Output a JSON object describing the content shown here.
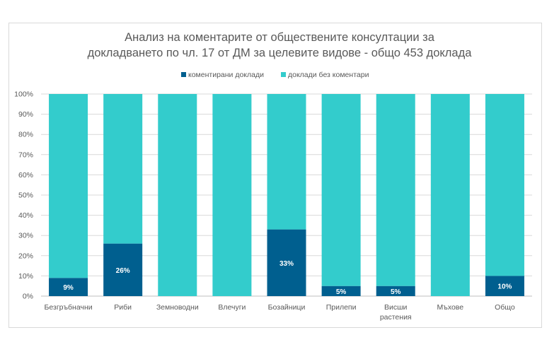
{
  "chart_data": {
    "type": "bar",
    "stacked": true,
    "title_lines": [
      "Анализ на коментарите от обществените консултации за",
      "докладването по чл. 17 от ДМ за целевите видове - общо 453 доклада"
    ],
    "categories": [
      [
        "Безгръбначни"
      ],
      [
        "Риби"
      ],
      [
        "Земноводни"
      ],
      [
        "Влечуги"
      ],
      [
        "Бозайници"
      ],
      [
        "Прилепи"
      ],
      [
        "Висши",
        "растения"
      ],
      [
        "Мъхове"
      ],
      [
        "Общо"
      ]
    ],
    "series": [
      {
        "name": "коментирани доклади",
        "color": "#005f8f",
        "values": [
          9,
          26,
          0,
          0,
          33,
          5,
          5,
          0,
          10
        ],
        "labels": [
          "9%",
          "26%",
          "",
          "",
          "33%",
          "5%",
          "5%",
          "",
          "10%"
        ]
      },
      {
        "name": "доклади без коментари",
        "color": "#33cccc",
        "values": [
          91,
          74,
          100,
          100,
          67,
          95,
          95,
          100,
          90
        ]
      }
    ],
    "yticks": [
      "0%",
      "10%",
      "20%",
      "30%",
      "40%",
      "50%",
      "60%",
      "70%",
      "80%",
      "90%",
      "100%"
    ],
    "ylim": [
      0,
      100
    ],
    "grid": true,
    "legend_position": "top"
  }
}
